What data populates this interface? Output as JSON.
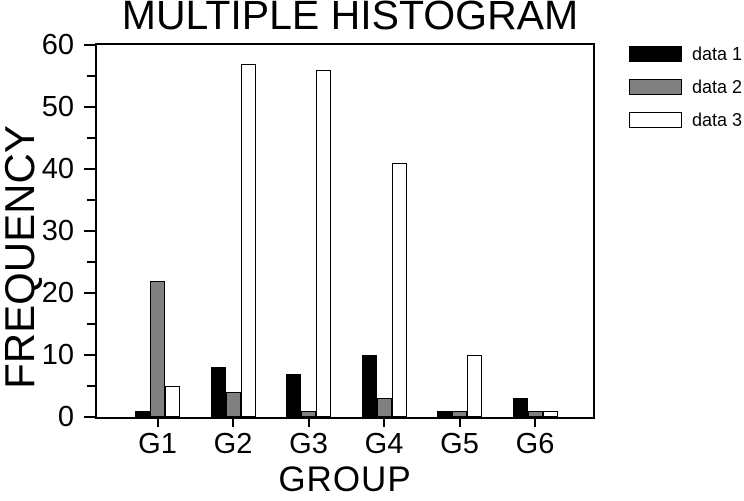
{
  "chart_data": {
    "type": "bar",
    "title": "MULTIPLE HISTOGRAM",
    "xlabel": "GROUP",
    "ylabel": "FREQUENCY",
    "categories": [
      "G1",
      "G2",
      "G3",
      "G4",
      "G5",
      "G6"
    ],
    "series": [
      {
        "name": "data 1",
        "color": "#000000",
        "values": [
          1,
          8,
          7,
          10,
          1,
          3
        ]
      },
      {
        "name": "data 2",
        "color": "#808080",
        "values": [
          22,
          4,
          1,
          3,
          1,
          1
        ]
      },
      {
        "name": "data 3",
        "color": "#ffffff",
        "values": [
          5,
          57,
          56,
          41,
          10,
          1
        ]
      }
    ],
    "ylim": [
      0,
      60
    ],
    "yticks": [
      0,
      10,
      20,
      30,
      40,
      50,
      60
    ],
    "yticks_minor": [
      5,
      15,
      25,
      35,
      45,
      55
    ],
    "grid": false,
    "legend_position": "right",
    "bar_outline_color": "#000000",
    "background_color": "#ffffff"
  }
}
